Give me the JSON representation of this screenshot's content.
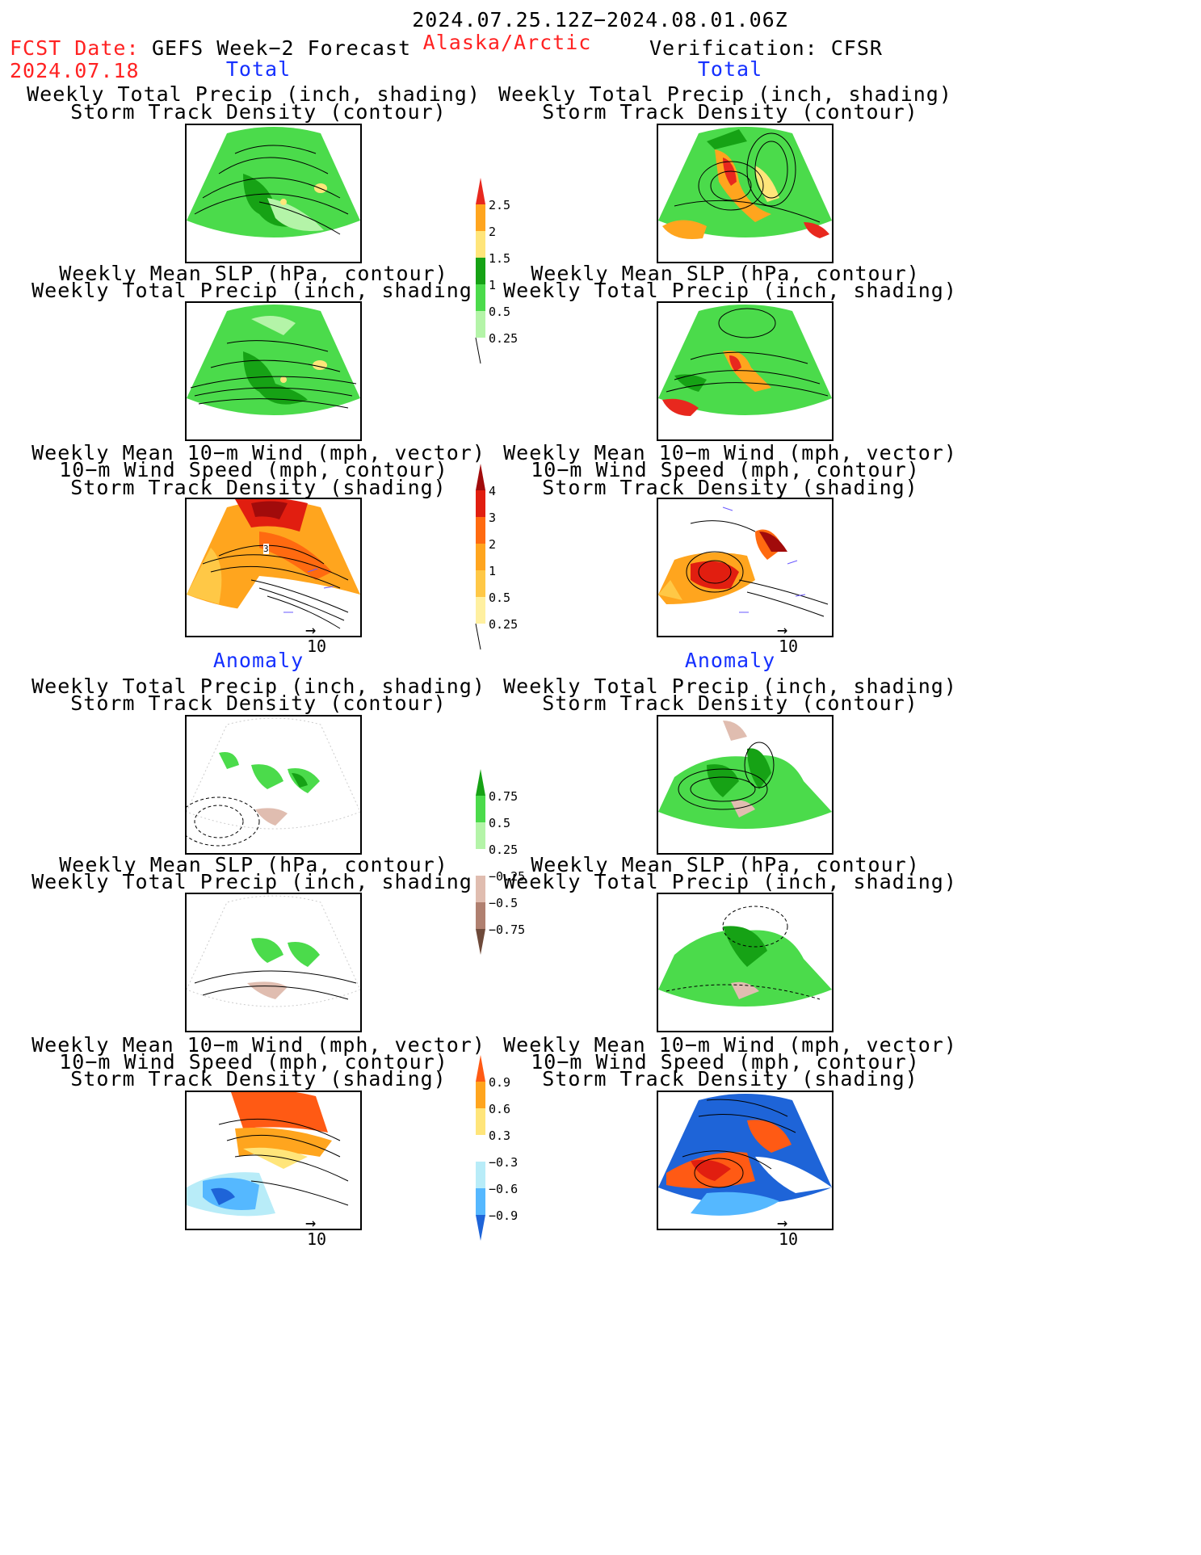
{
  "header": {
    "period": "2024.07.25.12Z−2024.08.01.06Z",
    "fcst_label": "FCST Date:",
    "fcst_date": "2024.07.18",
    "product": "GEFS Week−2 Forecast",
    "region": "Alaska/Arctic",
    "verification": "Verification: CFSR"
  },
  "sections": {
    "total": "Total",
    "anomaly": "Anomaly"
  },
  "titles": {
    "precip_track": [
      "Weekly Total Precip (inch, shading)",
      "Storm Track Density (contour)"
    ],
    "slp_precip": [
      "Weekly Mean SLP (hPa, contour)",
      "Weekly Total Precip (inch, shading)"
    ],
    "wind_track": [
      "Weekly Mean 10−m Wind (mph, vector)",
      "10−m Wind Speed (mph, contour)",
      "Storm Track Density (shading)"
    ]
  },
  "wind_contour_label": "3",
  "vector_ref": "10",
  "colorbars": {
    "precip_total": {
      "labels": [
        "2.5",
        "2",
        "1.5",
        "1",
        "0.5",
        "0.25"
      ],
      "colors": [
        "#e8281e",
        "#ffa51e",
        "#ffe57a",
        "#16a215",
        "#4bdb4b",
        "#b4f4a8"
      ]
    },
    "track_total": {
      "labels": [
        "4",
        "3",
        "2",
        "1",
        "0.5",
        "0.25"
      ],
      "colors": [
        "#a10b0b",
        "#e11e10",
        "#ff6a10",
        "#ffa51e",
        "#ffc846",
        "#fff0a0"
      ]
    },
    "precip_anom": {
      "labels": [
        "0.75",
        "0.5",
        "0.25",
        "−0.25",
        "−0.5",
        "−0.75"
      ],
      "colors": [
        "#16a215",
        "#4bdb4b",
        "#b4f4a8",
        "#ffffff",
        "#e0bdb0",
        "#b08070",
        "#6e4a3a"
      ]
    },
    "track_anom": {
      "labels": [
        "0.9",
        "0.6",
        "0.3",
        "−0.3",
        "−0.6",
        "−0.9"
      ],
      "colors": [
        "#ff5a14",
        "#ffa51e",
        "#ffe57a",
        "#ffffff",
        "#b8ecf8",
        "#55b8ff",
        "#1e64d8"
      ]
    }
  },
  "colors": {
    "red_text": "#ff2222",
    "blue_text": "#1530ff"
  }
}
